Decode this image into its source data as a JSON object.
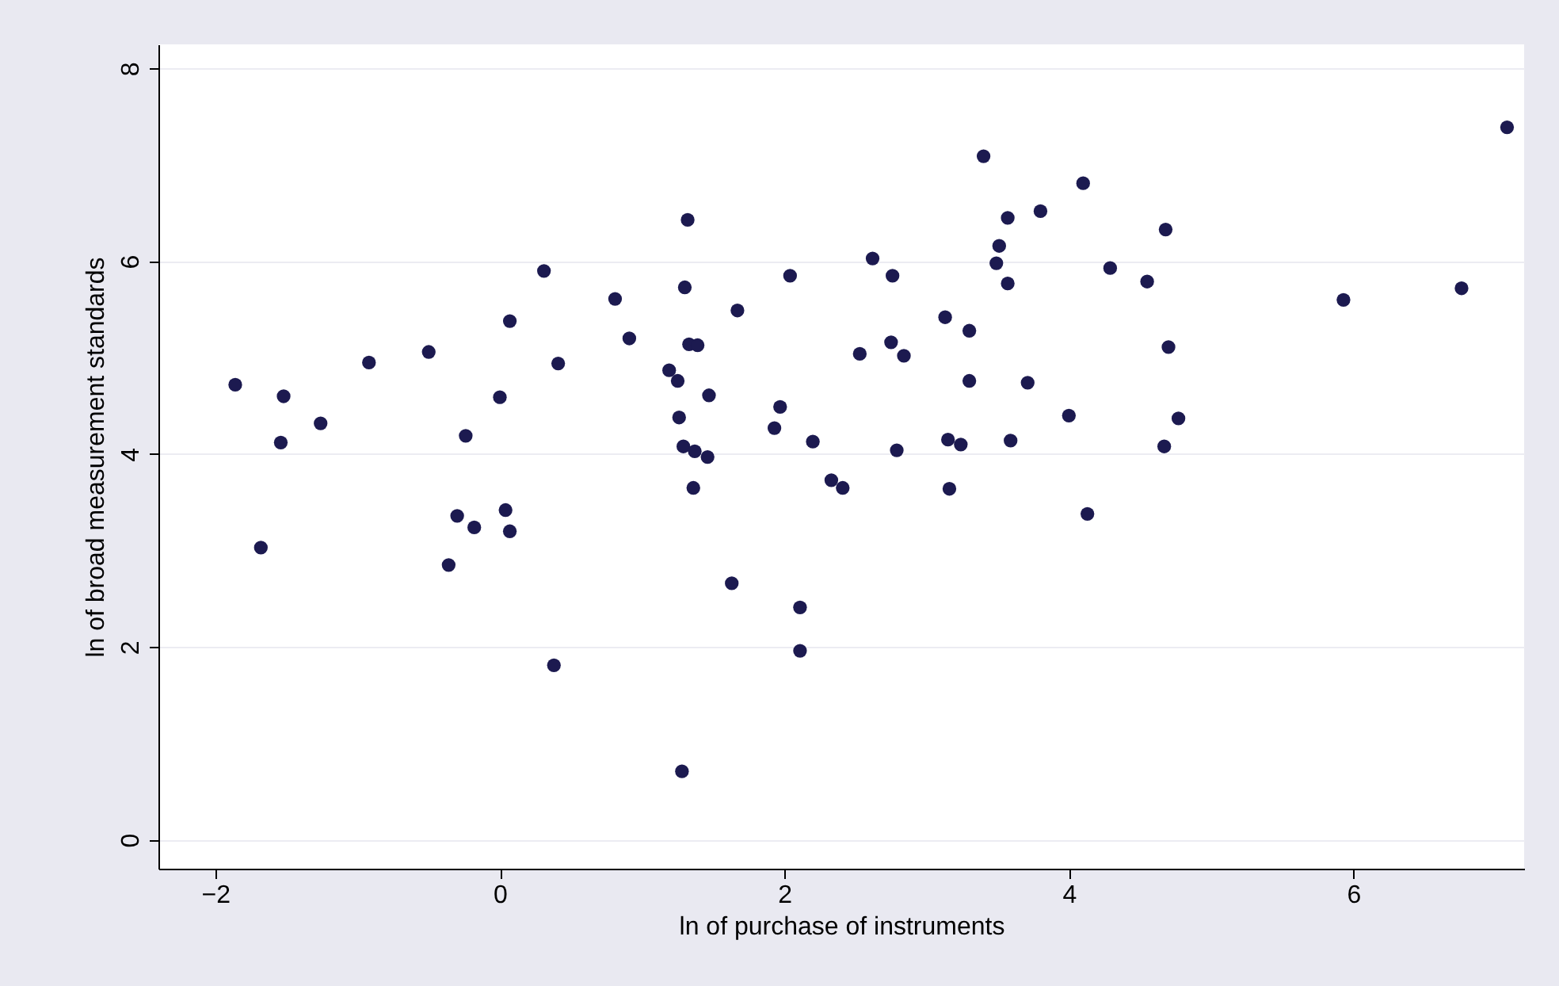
{
  "chart_data": {
    "type": "scatter",
    "xlabel": "ln of purchase of instruments",
    "ylabel": "ln of broad measurement standards",
    "xlim": [
      -2.4,
      7.2
    ],
    "ylim": [
      -0.3,
      8.25
    ],
    "xticks": [
      -2,
      0,
      2,
      4,
      6
    ],
    "yticks": [
      0,
      2,
      4,
      6,
      8
    ],
    "grid": "y",
    "marker": "circle",
    "series": [
      {
        "color": "#1c1a50",
        "x": [
          -1.86,
          -1.52,
          -1.54,
          -1.26,
          -1.68,
          -0.92,
          -0.5,
          0.07,
          0.31,
          0.0,
          -0.24,
          0.41,
          -0.3,
          -0.18,
          0.04,
          0.07,
          -0.36,
          0.38,
          0.81,
          0.91,
          3.4,
          4.1,
          1.32,
          3.57,
          3.8,
          3.51,
          3.49,
          3.57,
          2.62,
          2.76,
          4.29,
          2.04,
          1.3,
          1.67,
          1.33,
          1.39,
          3.13,
          3.3,
          2.75,
          2.84,
          2.53,
          1.19,
          1.25,
          1.47,
          3.3,
          3.71,
          1.26,
          1.97,
          1.93,
          4.0,
          2.2,
          2.79,
          3.15,
          3.24,
          3.59,
          1.29,
          1.37,
          1.46,
          1.36,
          2.33,
          2.41,
          3.16,
          4.13,
          1.63,
          2.11,
          2.11,
          1.28,
          7.08,
          4.68,
          4.55,
          5.93,
          6.76,
          4.7,
          4.77,
          4.67
        ],
        "values": [
          4.72,
          4.6,
          4.12,
          4.32,
          3.03,
          4.95,
          5.06,
          5.38,
          5.9,
          4.59,
          4.19,
          4.94,
          3.36,
          3.24,
          3.42,
          3.2,
          2.85,
          1.81,
          5.61,
          5.2,
          7.09,
          6.81,
          6.43,
          6.45,
          6.52,
          6.16,
          5.98,
          5.77,
          6.03,
          5.85,
          5.93,
          5.85,
          5.73,
          5.49,
          5.14,
          5.13,
          5.42,
          5.28,
          5.16,
          5.02,
          5.04,
          4.87,
          4.76,
          4.61,
          4.76,
          4.74,
          4.38,
          4.49,
          4.27,
          4.4,
          4.13,
          4.04,
          4.15,
          4.1,
          4.14,
          4.08,
          4.03,
          3.97,
          3.65,
          3.73,
          3.65,
          3.64,
          3.38,
          2.66,
          2.41,
          1.96,
          0.71,
          7.39,
          6.33,
          5.79,
          5.6,
          5.72,
          5.11,
          4.37,
          4.08
        ]
      }
    ]
  }
}
